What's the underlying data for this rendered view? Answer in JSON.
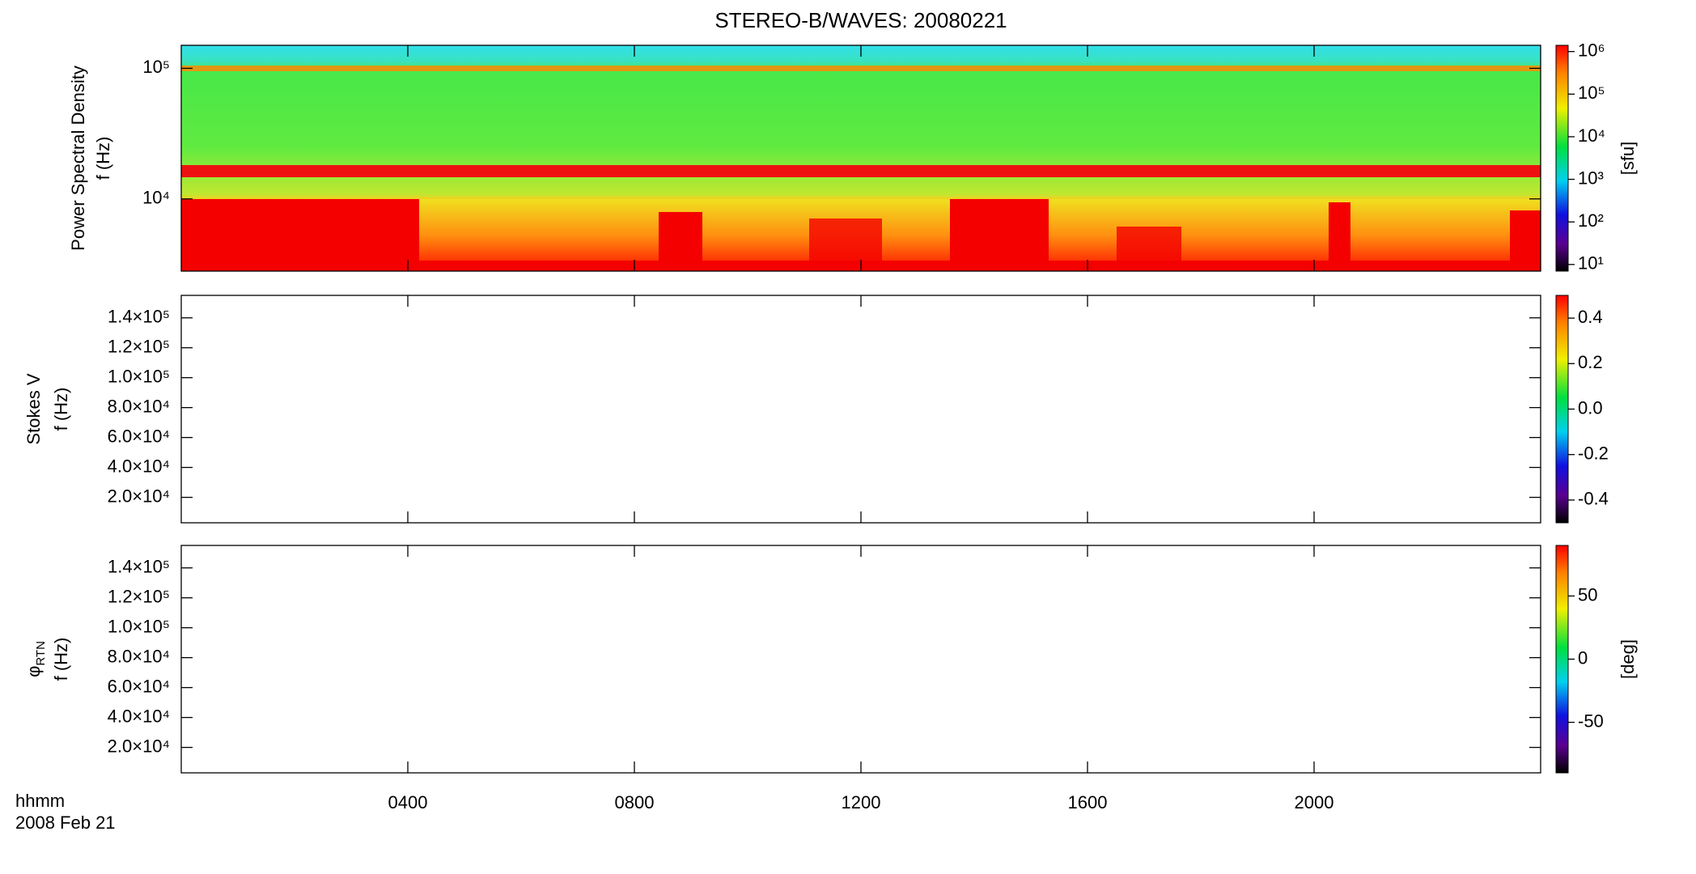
{
  "chart_data": [
    {
      "type": "heatmap",
      "title": "STEREO-B/WAVES: 20080221",
      "ylabel": [
        "Power Spectral Density",
        "f (Hz)"
      ],
      "ylog": true,
      "ylim": [
        2800,
        150000
      ],
      "yticks": [
        {
          "value": 10000,
          "label": "10⁴"
        },
        {
          "value": 100000,
          "label": "10⁵"
        }
      ],
      "colorbar": {
        "log": true,
        "lim": [
          7,
          1400000
        ],
        "label": "[sfu]",
        "ticks": [
          {
            "value": 10,
            "label": "10¹"
          },
          {
            "value": 100,
            "label": "10²"
          },
          {
            "value": 1000,
            "label": "10³"
          },
          {
            "value": 10000,
            "label": "10⁴"
          },
          {
            "value": 100000,
            "label": "10⁵"
          },
          {
            "value": 1000000,
            "label": "10⁶"
          }
        ]
      }
    },
    {
      "type": "heatmap",
      "ylabel": [
        "Stokes V",
        "f (Hz)"
      ],
      "ylog": false,
      "ylim": [
        3000,
        155000
      ],
      "yticks": [
        {
          "value": 20000,
          "label": "2.0×10⁴"
        },
        {
          "value": 40000,
          "label": "4.0×10⁴"
        },
        {
          "value": 60000,
          "label": "6.0×10⁴"
        },
        {
          "value": 80000,
          "label": "8.0×10⁴"
        },
        {
          "value": 100000,
          "label": "1.0×10⁵"
        },
        {
          "value": 120000,
          "label": "1.2×10⁵"
        },
        {
          "value": 140000,
          "label": "1.4×10⁵"
        }
      ],
      "colorbar": {
        "log": false,
        "lim": [
          -0.5,
          0.5
        ],
        "ticks": [
          -0.4,
          -0.2,
          {
            "value": 0,
            "label": "0.0"
          },
          0.2,
          0.4
        ]
      }
    },
    {
      "type": "heatmap",
      "ylabel": [
        "φ",
        "f (Hz)"
      ],
      "ylabel_subscript": "RTN",
      "ylog": false,
      "ylim": [
        3000,
        155000
      ],
      "yticks": [
        {
          "value": 20000,
          "label": "2.0×10⁴"
        },
        {
          "value": 40000,
          "label": "4.0×10⁴"
        },
        {
          "value": 60000,
          "label": "6.0×10⁴"
        },
        {
          "value": 80000,
          "label": "8.0×10⁴"
        },
        {
          "value": 100000,
          "label": "1.0×10⁵"
        },
        {
          "value": 120000,
          "label": "1.2×10⁵"
        },
        {
          "value": 140000,
          "label": "1.4×10⁵"
        }
      ],
      "colorbar": {
        "log": false,
        "lim": [
          -90,
          90
        ],
        "label": "[deg]",
        "ticks": [
          -50,
          0,
          50
        ]
      },
      "xlim": [
        0,
        24
      ],
      "xticks": [
        {
          "value": 4,
          "label": "0400"
        },
        {
          "value": 8,
          "label": "0800"
        },
        {
          "value": 12,
          "label": "1200"
        },
        {
          "value": 16,
          "label": "1600"
        },
        {
          "value": 20,
          "label": "2000"
        }
      ],
      "xlabel": "hhmm",
      "xlabel2": "2008 Feb 21"
    }
  ]
}
